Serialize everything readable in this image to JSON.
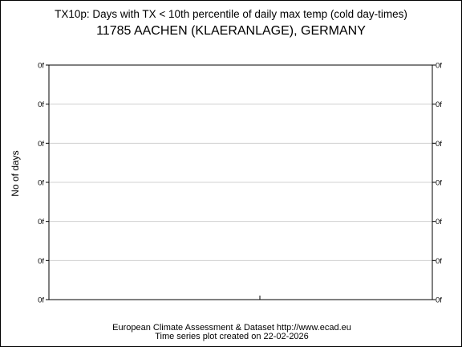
{
  "chart_data": {
    "type": "line",
    "title": "TX10p: Days with TX < 10th percentile of daily max temp (cold day-times)",
    "subtitle": "11785 AACHEN (KLAERANLAGE), GERMANY",
    "xlabel": "",
    "ylabel": "No of days",
    "y_tick_labels": [
      "0f",
      "0f",
      "0f",
      "0f",
      "0f",
      "0f",
      "0f"
    ],
    "x_tick_labels": [],
    "grid": true,
    "series": [],
    "footer_line1": "European Climate Assessment & Dataset  http://www.ecad.eu",
    "footer_line2": "Time series plot created on 22-02-2026"
  }
}
